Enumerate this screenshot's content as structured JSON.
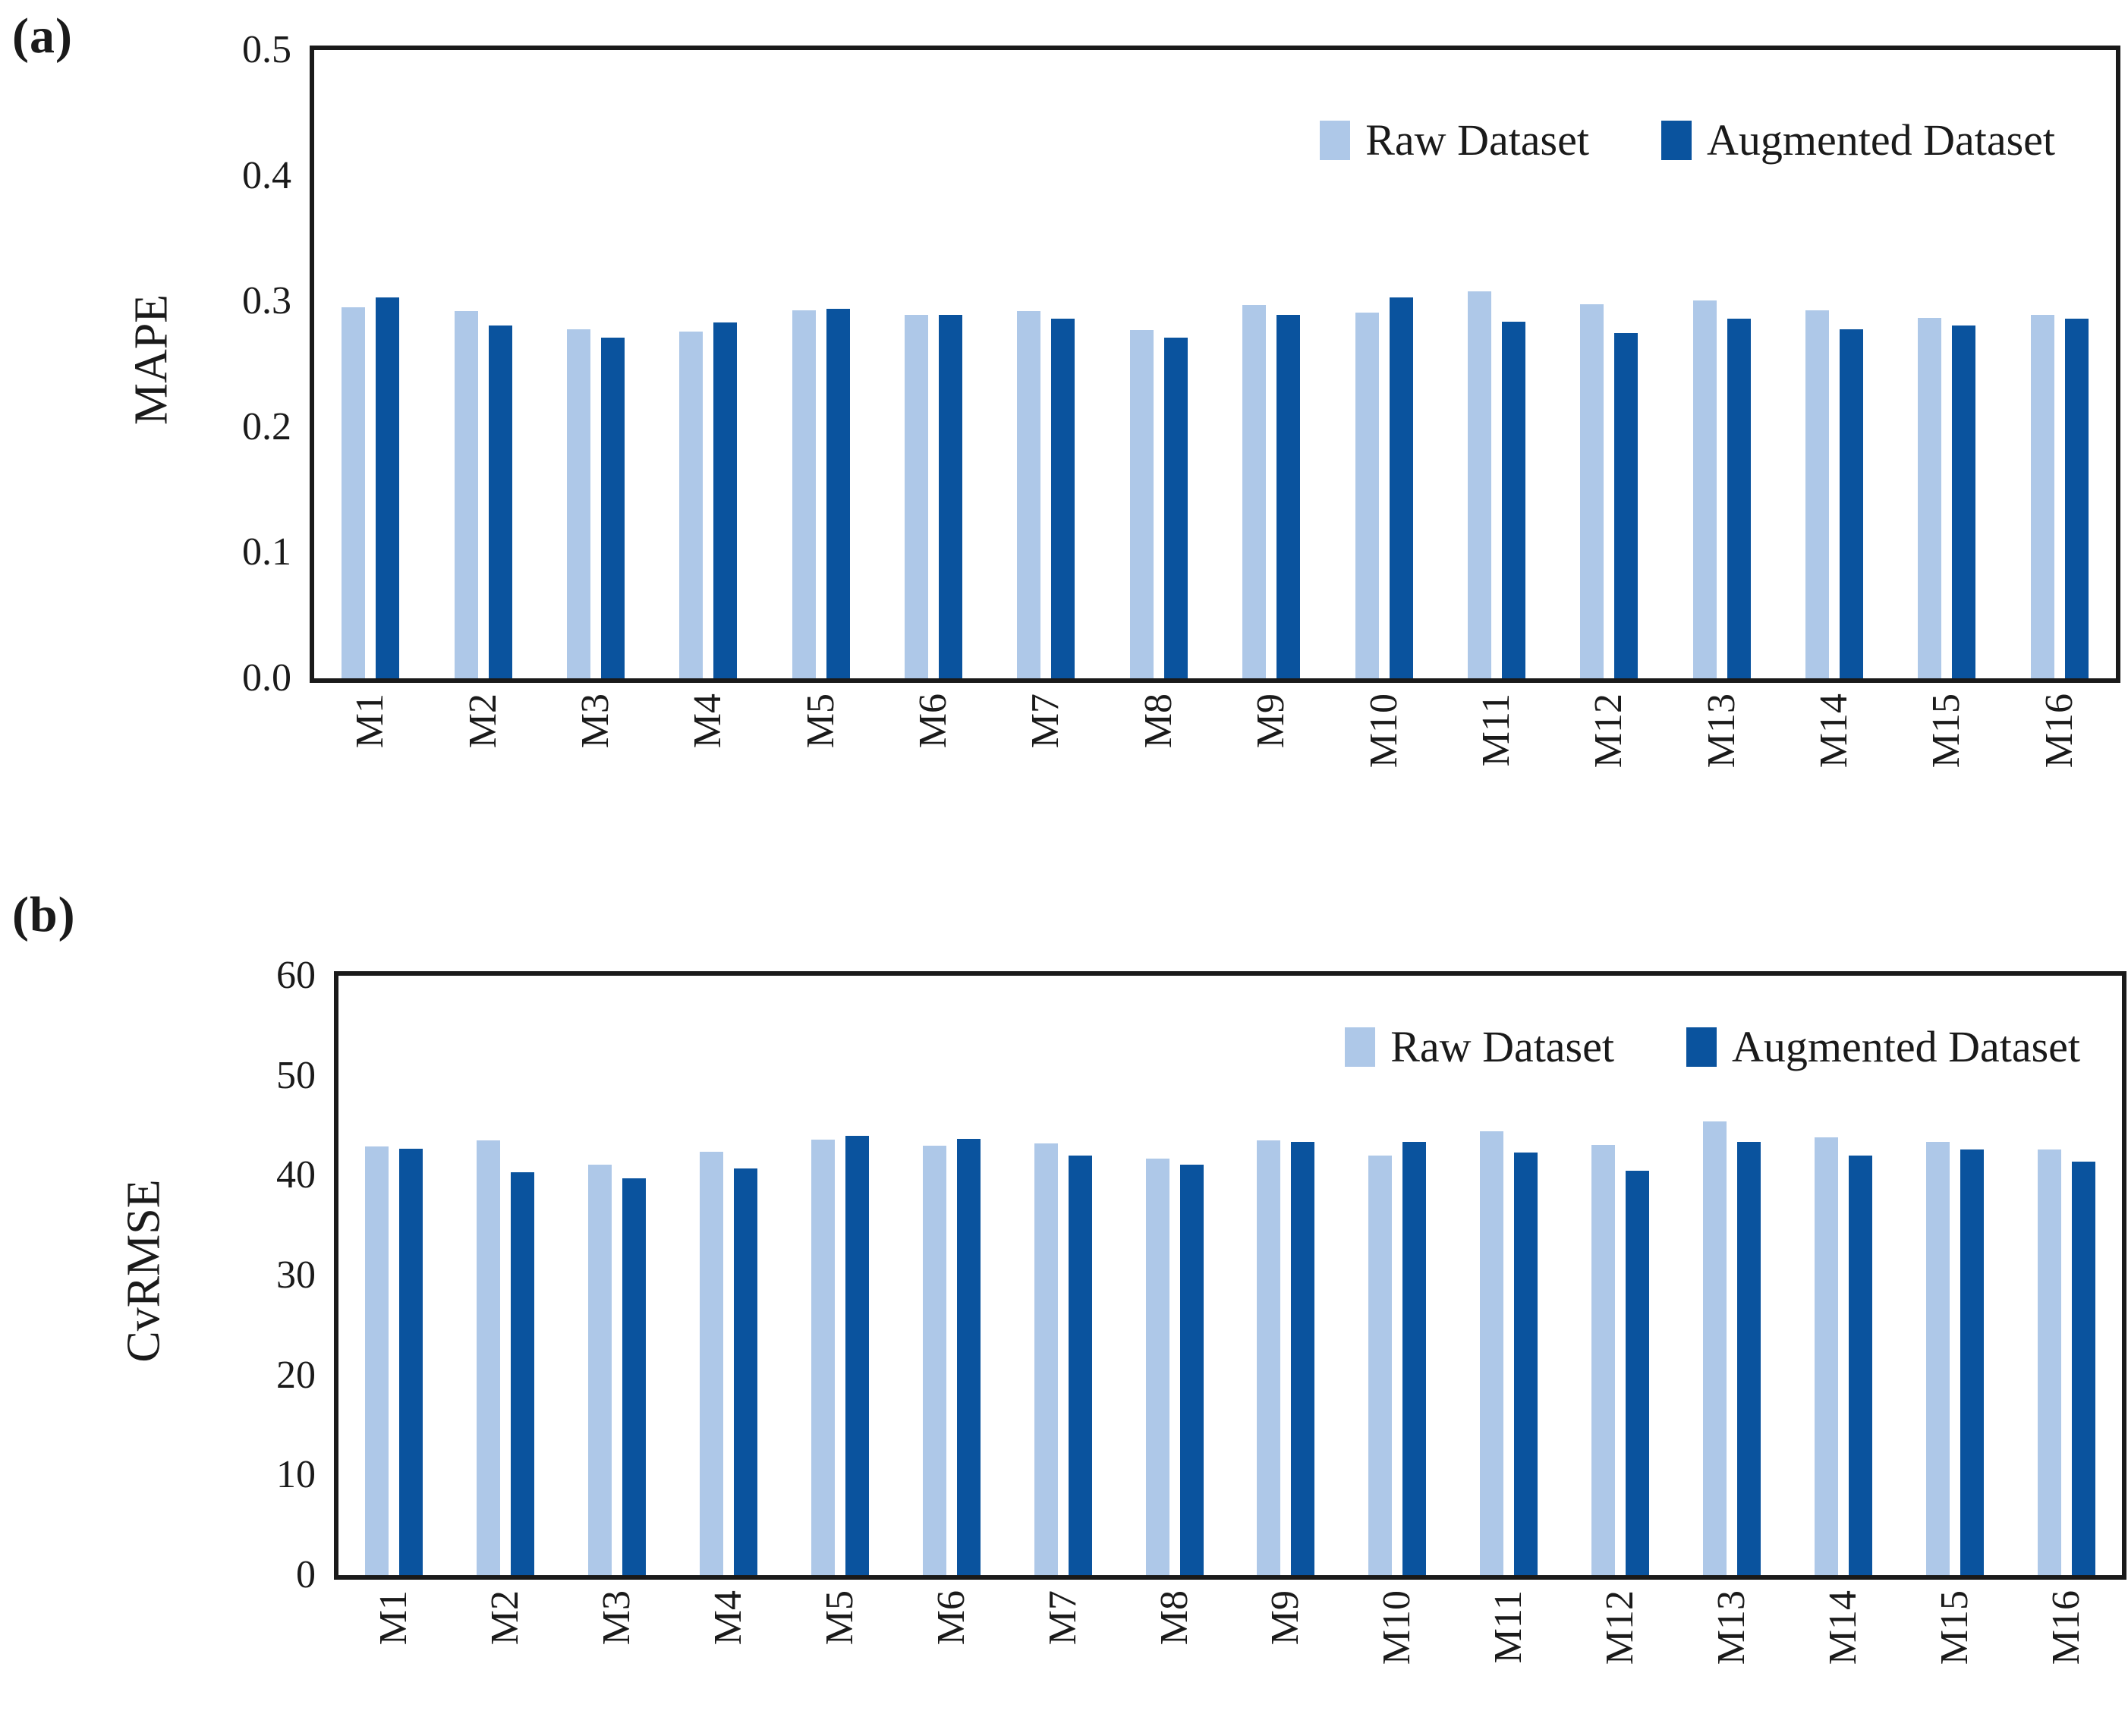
{
  "figure": {
    "panel_a_label": "(a)",
    "panel_b_label": "(b)"
  },
  "legend": {
    "raw_label": "Raw Dataset",
    "augmented_label": "Augmented Dataset"
  },
  "colors": {
    "raw_series": "#AEC8E8",
    "augmented_series": "#0A539E",
    "axis": "#1A1A1A",
    "background": "#FFFFFF"
  },
  "chart_data": [
    {
      "type": "bar",
      "panel": "(a)",
      "title": "",
      "xlabel": "",
      "ylabel": "MAPE",
      "ylim": [
        0,
        0.5
      ],
      "ytick_step": 0.1,
      "ytick_decimals": 1,
      "grid": false,
      "legend_position": "top-right-inside",
      "categories": [
        "M1",
        "M2",
        "M3",
        "M4",
        "M5",
        "M6",
        "M7",
        "M8",
        "M9",
        "M10",
        "M11",
        "M12",
        "M13",
        "M14",
        "M15",
        "M16"
      ],
      "series": [
        {
          "name": "Raw Dataset",
          "color": "#AEC8E8",
          "values": [
            0.295,
            0.292,
            0.278,
            0.276,
            0.293,
            0.289,
            0.292,
            0.277,
            0.297,
            0.291,
            0.308,
            0.298,
            0.301,
            0.293,
            0.287,
            0.289
          ]
        },
        {
          "name": "Augmented Dataset",
          "color": "#0A539E",
          "values": [
            0.303,
            0.281,
            0.271,
            0.283,
            0.294,
            0.289,
            0.286,
            0.271,
            0.289,
            0.303,
            0.284,
            0.275,
            0.286,
            0.278,
            0.281,
            0.286
          ]
        }
      ]
    },
    {
      "type": "bar",
      "panel": "(b)",
      "title": "",
      "xlabel": "",
      "ylabel": "CvRMSE",
      "ylim": [
        0,
        60
      ],
      "ytick_step": 10,
      "ytick_decimals": 0,
      "grid": false,
      "legend_position": "top-right-inside",
      "categories": [
        "M1",
        "M2",
        "M3",
        "M4",
        "M5",
        "M6",
        "M7",
        "M8",
        "M9",
        "M10",
        "M11",
        "M12",
        "M13",
        "M14",
        "M15",
        "M16"
      ],
      "series": [
        {
          "name": "Raw Dataset",
          "color": "#AEC8E8",
          "values": [
            42.9,
            43.5,
            41.1,
            42.4,
            43.6,
            43.0,
            43.2,
            41.7,
            43.5,
            42.0,
            44.4,
            43.1,
            45.4,
            43.8,
            43.4,
            42.6
          ]
        },
        {
          "name": "Augmented Dataset",
          "color": "#0A539E",
          "values": [
            42.7,
            40.3,
            39.7,
            40.7,
            44.0,
            43.7,
            42.0,
            41.1,
            43.4,
            43.4,
            42.3,
            40.5,
            43.4,
            42.0,
            42.6,
            41.4
          ]
        }
      ]
    }
  ]
}
